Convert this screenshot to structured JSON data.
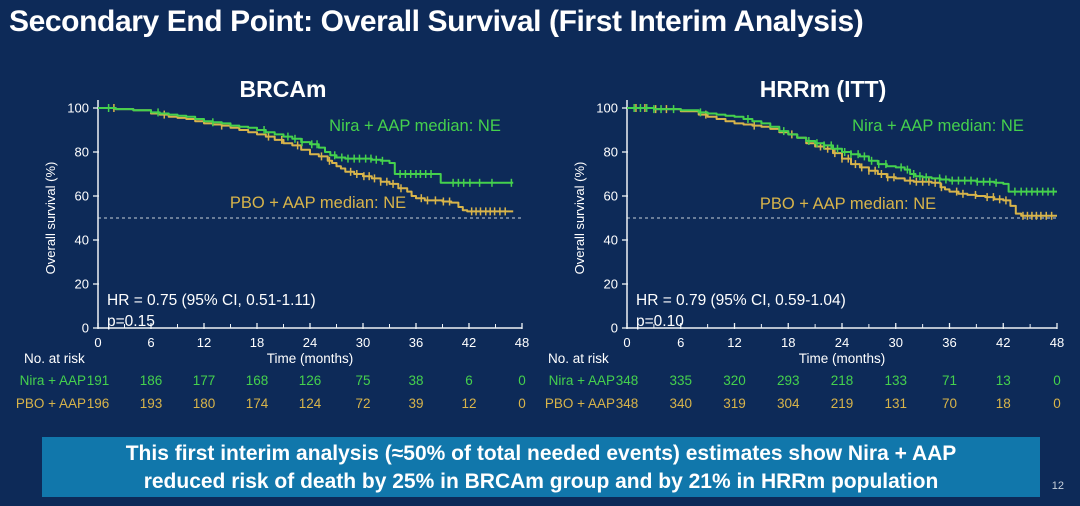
{
  "slide": {
    "title": "Secondary End Point: Overall Survival (First Interim Analysis)",
    "page_number": "12"
  },
  "banner": {
    "line1": "This first interim analysis (≈50% of total needed events) estimates show Nira + AAP",
    "line2": "reduced risk of death by 25% in BRCAm group and by 21% in HRRm population",
    "background_color": "#1177ab",
    "text_color": "#ffffff"
  },
  "colors": {
    "background": "#0d2a58",
    "nira_green": "#45d14d",
    "pbo_yellow": "#d8b44a",
    "axis": "#eef2f6",
    "text": "#ffffff",
    "median_line": "#c8d0d8"
  },
  "chart_data": [
    {
      "type": "line",
      "subtype": "kaplan-meier-step",
      "title": "BRCAm",
      "xlabel": "Time (months)",
      "ylabel": "Overall survival (%)",
      "xlim": [
        0,
        48
      ],
      "ylim": [
        0,
        100
      ],
      "xticks": [
        0,
        6,
        12,
        18,
        24,
        30,
        36,
        42,
        48
      ],
      "yticks": [
        0,
        20,
        40,
        60,
        80,
        100
      ],
      "reference_line_y": 50,
      "hr_text": "HR = 0.75 (95% CI, 0.51-1.11)",
      "p_text": "p=0.15",
      "series": [
        {
          "name": "Nira + AAP",
          "annotation": "Nira + AAP median: NE",
          "color_key": "nira_green",
          "steps": [
            [
              0,
              100
            ],
            [
              2,
              99.5
            ],
            [
              4,
              99
            ],
            [
              6,
              98
            ],
            [
              7,
              97.5
            ],
            [
              8,
              97
            ],
            [
              9,
              96.5
            ],
            [
              10,
              96
            ],
            [
              11,
              95
            ],
            [
              12,
              94
            ],
            [
              13,
              93.5
            ],
            [
              14,
              93
            ],
            [
              15,
              92
            ],
            [
              16,
              91.5
            ],
            [
              17,
              91
            ],
            [
              18,
              90
            ],
            [
              19,
              89
            ],
            [
              20,
              88
            ],
            [
              21,
              87
            ],
            [
              22,
              86
            ],
            [
              23,
              84.5
            ],
            [
              24,
              83.5
            ],
            [
              25,
              82
            ],
            [
              25.7,
              80
            ],
            [
              26.3,
              78.5
            ],
            [
              27,
              77.5
            ],
            [
              28,
              77
            ],
            [
              30,
              77
            ],
            [
              31,
              76.5
            ],
            [
              32,
              76
            ],
            [
              33,
              75
            ],
            [
              33.6,
              70
            ],
            [
              38.4,
              70
            ],
            [
              38.8,
              66
            ],
            [
              47,
              66
            ]
          ],
          "censor_months": [
            1.2,
            6.8,
            13,
            18.8,
            21.5,
            22.3,
            23.1,
            24.2,
            24.8,
            26.8,
            27.6,
            28.3,
            29,
            29.6,
            30.3,
            30.9,
            31.5,
            32.2,
            34.2,
            34.8,
            35.4,
            36,
            36.5,
            37.1,
            37.7,
            40.2,
            40.8,
            41.4,
            42.1,
            43.2,
            44.6,
            46.8
          ]
        },
        {
          "name": "PBO + AAP",
          "annotation": "PBO + AAP median: NE",
          "color_key": "pbo_yellow",
          "steps": [
            [
              0,
              100
            ],
            [
              2,
              99.5
            ],
            [
              4,
              99
            ],
            [
              6,
              97.5
            ],
            [
              7,
              97
            ],
            [
              8,
              96
            ],
            [
              9,
              95.5
            ],
            [
              10,
              95
            ],
            [
              11,
              94
            ],
            [
              12,
              93
            ],
            [
              13,
              92.5
            ],
            [
              14,
              92
            ],
            [
              15,
              91
            ],
            [
              16,
              90
            ],
            [
              17,
              89
            ],
            [
              18,
              88
            ],
            [
              19,
              87
            ],
            [
              20,
              85.5
            ],
            [
              21,
              84
            ],
            [
              22,
              83
            ],
            [
              23,
              81
            ],
            [
              24,
              79
            ],
            [
              25,
              78
            ],
            [
              26,
              76
            ],
            [
              26.5,
              75
            ],
            [
              27,
              73.5
            ],
            [
              27.5,
              72.5
            ],
            [
              28,
              71
            ],
            [
              29,
              70
            ],
            [
              30,
              69
            ],
            [
              31,
              68
            ],
            [
              32,
              66.5
            ],
            [
              33,
              65.5
            ],
            [
              34,
              63.5
            ],
            [
              35,
              62
            ],
            [
              35.5,
              60
            ],
            [
              36,
              59
            ],
            [
              37,
              58
            ],
            [
              39,
              57.5
            ],
            [
              40,
              57
            ],
            [
              40.8,
              55
            ],
            [
              41.3,
              53.5
            ],
            [
              41.8,
              53
            ],
            [
              47,
              53
            ]
          ],
          "censor_months": [
            1.8,
            7.5,
            14,
            19.3,
            20.8,
            22.6,
            25.3,
            26.2,
            28.6,
            29.3,
            30.1,
            30.7,
            31.3,
            32,
            32.7,
            33.4,
            34.3,
            36.6,
            37.3,
            38.2,
            39.1,
            39.8,
            42.3,
            42.8,
            43.3,
            43.9,
            44.4,
            44.9,
            45.5,
            46.1
          ]
        }
      ],
      "at_risk": {
        "header": "No. at risk",
        "rows": [
          {
            "name": "Nira + AAP",
            "color_key": "nira_green",
            "values": [
              191,
              186,
              177,
              168,
              126,
              75,
              38,
              6,
              0
            ]
          },
          {
            "name": "PBO + AAP",
            "color_key": "pbo_yellow",
            "values": [
              196,
              193,
              180,
              174,
              124,
              72,
              39,
              12,
              0
            ]
          }
        ]
      }
    },
    {
      "type": "line",
      "subtype": "kaplan-meier-step",
      "title": "HRRm (ITT)",
      "xlabel": "Time (months)",
      "ylabel": "Overall survival (%)",
      "xlim": [
        0,
        48
      ],
      "ylim": [
        0,
        100
      ],
      "xticks": [
        0,
        6,
        12,
        18,
        24,
        30,
        36,
        42,
        48
      ],
      "yticks": [
        0,
        20,
        40,
        60,
        80,
        100
      ],
      "reference_line_y": 50,
      "hr_text": "HR = 0.79 (95% CI, 0.59-1.04)",
      "p_text": "p=0.10",
      "series": [
        {
          "name": "Nira + AAP",
          "annotation": "Nira + AAP median: NE",
          "color_key": "nira_green",
          "steps": [
            [
              0,
              100
            ],
            [
              3,
              99.5
            ],
            [
              6,
              99
            ],
            [
              8,
              98
            ],
            [
              9,
              97.5
            ],
            [
              10,
              97
            ],
            [
              11,
              96.5
            ],
            [
              12,
              96
            ],
            [
              13,
              95
            ],
            [
              14,
              94
            ],
            [
              15,
              93
            ],
            [
              16,
              91.5
            ],
            [
              17,
              89.5
            ],
            [
              18,
              88
            ],
            [
              19,
              86.5
            ],
            [
              20,
              85
            ],
            [
              21,
              84
            ],
            [
              22,
              83
            ],
            [
              23,
              81.5
            ],
            [
              24,
              80
            ],
            [
              25,
              79
            ],
            [
              26,
              78
            ],
            [
              27,
              76
            ],
            [
              28,
              74.5
            ],
            [
              29,
              73.5
            ],
            [
              30,
              73
            ],
            [
              31,
              72
            ],
            [
              31.6,
              70
            ],
            [
              32.2,
              69
            ],
            [
              33,
              68.5
            ],
            [
              34,
              68
            ],
            [
              35,
              67.5
            ],
            [
              36,
              67
            ],
            [
              39,
              66.5
            ],
            [
              41,
              66
            ],
            [
              42,
              65.5
            ],
            [
              42.6,
              62
            ],
            [
              48,
              62
            ]
          ],
          "censor_months": [
            0.8,
            1.5,
            2.2,
            3,
            3.8,
            5.2,
            8.2,
            13.5,
            17.5,
            20.3,
            21.2,
            22,
            22.8,
            23.5,
            24.3,
            25,
            25.8,
            26.5,
            27.3,
            28.1,
            28.9,
            30.6,
            31.3,
            32,
            32.7,
            33.4,
            34.9,
            35.6,
            36.3,
            37,
            37.7,
            38.4,
            39.1,
            39.8,
            40.5,
            41.2,
            43.3,
            44,
            44.6,
            45.2,
            45.8,
            46.4,
            47,
            47.6
          ]
        },
        {
          "name": "PBO + AAP",
          "annotation": "PBO + AAP median: NE",
          "color_key": "pbo_yellow",
          "steps": [
            [
              0,
              100
            ],
            [
              3,
              99.5
            ],
            [
              6,
              98.5
            ],
            [
              8,
              97
            ],
            [
              9,
              96
            ],
            [
              10,
              95
            ],
            [
              11,
              94
            ],
            [
              12,
              93
            ],
            [
              13,
              92.5
            ],
            [
              14,
              92
            ],
            [
              15,
              91.5
            ],
            [
              16,
              90.5
            ],
            [
              17,
              89
            ],
            [
              18,
              88
            ],
            [
              19,
              86.5
            ],
            [
              20,
              84
            ],
            [
              21,
              82.5
            ],
            [
              22,
              81.5
            ],
            [
              23,
              79.5
            ],
            [
              24,
              77
            ],
            [
              25,
              74.5
            ],
            [
              26,
              73
            ],
            [
              27,
              71.5
            ],
            [
              28,
              70
            ],
            [
              29,
              68.5
            ],
            [
              30,
              68
            ],
            [
              31,
              67
            ],
            [
              32,
              66.5
            ],
            [
              34,
              66
            ],
            [
              35,
              64
            ],
            [
              35.5,
              63
            ],
            [
              36,
              62
            ],
            [
              37,
              61
            ],
            [
              38,
              60.5
            ],
            [
              39,
              60
            ],
            [
              40,
              59.5
            ],
            [
              41,
              58.5
            ],
            [
              42,
              58
            ],
            [
              42.8,
              55.5
            ],
            [
              43.4,
              52
            ],
            [
              44,
              51
            ],
            [
              48,
              51
            ]
          ],
          "censor_months": [
            1,
            2,
            3.2,
            4.4,
            8.8,
            14.2,
            18.4,
            21.6,
            22.4,
            23.2,
            24,
            24.7,
            25.5,
            26.2,
            27,
            27.7,
            28.4,
            29.1,
            29.8,
            31.6,
            32.3,
            33,
            33.7,
            34.4,
            35.1,
            36.8,
            37.5,
            38.9,
            40.2,
            40.9,
            41.6,
            42.3,
            44.2,
            44.7,
            45.2,
            45.7,
            46.2,
            46.8,
            47.4
          ]
        }
      ],
      "at_risk": {
        "header": "No. at risk",
        "rows": [
          {
            "name": "Nira + AAP",
            "color_key": "nira_green",
            "values": [
              348,
              335,
              320,
              293,
              218,
              133,
              71,
              13,
              0
            ]
          },
          {
            "name": "PBO + AAP",
            "color_key": "pbo_yellow",
            "values": [
              348,
              340,
              319,
              304,
              219,
              131,
              70,
              18,
              0
            ]
          }
        ]
      }
    }
  ]
}
